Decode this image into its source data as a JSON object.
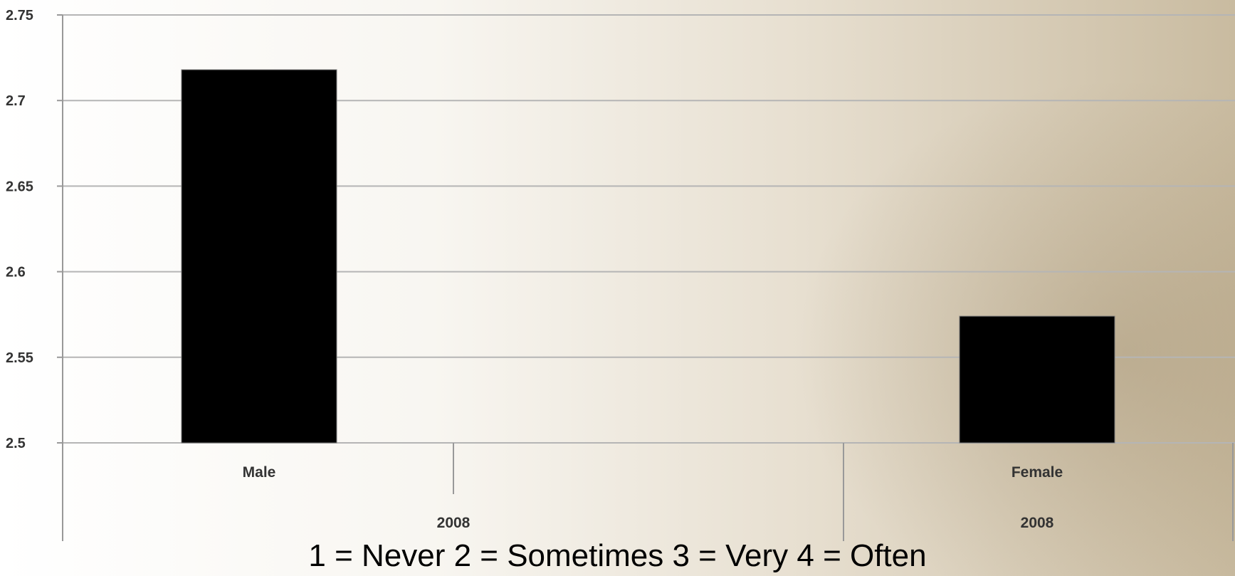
{
  "chart_data": {
    "type": "bar",
    "categories": [
      "Male",
      "Female"
    ],
    "groups": [
      "2008",
      "2008"
    ],
    "values": [
      2.718,
      2.574
    ],
    "ylim": [
      2.5,
      2.75
    ],
    "yticks": [
      "2.5",
      "2.55",
      "2.6",
      "2.65",
      "2.7",
      "2.75"
    ],
    "grid": true,
    "bar_color": "#000000",
    "caption": "1 = Never  2 = Sometimes  3 = Very  4 = Often"
  }
}
